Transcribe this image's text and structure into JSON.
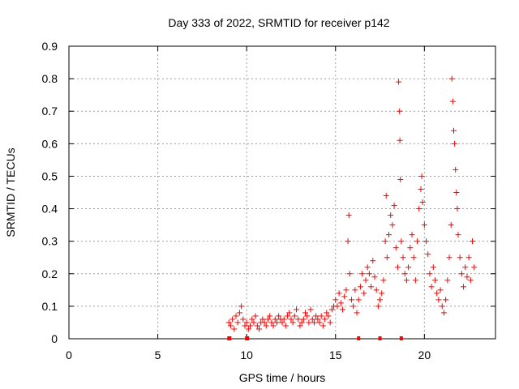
{
  "chart_data": {
    "type": "scatter",
    "title": "Day 333 of 2022, SRMTID for receiver p142",
    "xlabel": "GPS time / hours",
    "ylabel": "SRMTID / TECUs",
    "xlim": [
      0,
      24
    ],
    "ylim": [
      0,
      0.9
    ],
    "xticks": [
      0,
      5,
      10,
      15,
      20
    ],
    "yticks": [
      0,
      0.1,
      0.2,
      0.3,
      0.4,
      0.5,
      0.6,
      0.7,
      0.8,
      0.9
    ],
    "grid": true,
    "marker": "+",
    "color": "#ff0000",
    "series": [
      {
        "name": "SRMTID",
        "points": [
          [
            9.0,
            0.05
          ],
          [
            9.1,
            0.04
          ],
          [
            9.2,
            0.06
          ],
          [
            9.3,
            0.03
          ],
          [
            9.4,
            0.07
          ],
          [
            9.5,
            0.05
          ],
          [
            9.6,
            0.08
          ],
          [
            9.7,
            0.1
          ],
          [
            9.8,
            0.06
          ],
          [
            9.9,
            0.04
          ],
          [
            10.0,
            0.05
          ],
          [
            10.1,
            0.03
          ],
          [
            10.2,
            0.04
          ],
          [
            10.3,
            0.06
          ],
          [
            10.4,
            0.05
          ],
          [
            10.5,
            0.07
          ],
          [
            10.6,
            0.04
          ],
          [
            10.7,
            0.03
          ],
          [
            10.8,
            0.05
          ],
          [
            10.9,
            0.06
          ],
          [
            11.0,
            0.05
          ],
          [
            11.1,
            0.04
          ],
          [
            11.2,
            0.06
          ],
          [
            11.3,
            0.07
          ],
          [
            11.4,
            0.05
          ],
          [
            11.5,
            0.04
          ],
          [
            11.6,
            0.06
          ],
          [
            11.7,
            0.05
          ],
          [
            11.8,
            0.07
          ],
          [
            11.9,
            0.06
          ],
          [
            12.0,
            0.05
          ],
          [
            12.1,
            0.06
          ],
          [
            12.2,
            0.04
          ],
          [
            12.3,
            0.07
          ],
          [
            12.4,
            0.08
          ],
          [
            12.5,
            0.06
          ],
          [
            12.6,
            0.05
          ],
          [
            12.7,
            0.07
          ],
          [
            12.8,
            0.09
          ],
          [
            12.9,
            0.06
          ],
          [
            13.0,
            0.04
          ],
          [
            13.1,
            0.05
          ],
          [
            13.2,
            0.06
          ],
          [
            13.3,
            0.08
          ],
          [
            13.4,
            0.07
          ],
          [
            13.5,
            0.05
          ],
          [
            13.6,
            0.09
          ],
          [
            13.7,
            0.06
          ],
          [
            13.8,
            0.05
          ],
          [
            13.9,
            0.07
          ],
          [
            14.0,
            0.06
          ],
          [
            14.1,
            0.05
          ],
          [
            14.2,
            0.07
          ],
          [
            14.3,
            0.04
          ],
          [
            14.4,
            0.06
          ],
          [
            14.5,
            0.08
          ],
          [
            14.6,
            0.07
          ],
          [
            14.7,
            0.05
          ],
          [
            14.8,
            0.09
          ],
          [
            14.9,
            0.1
          ],
          [
            15.0,
            0.12
          ],
          [
            15.1,
            0.1
          ],
          [
            15.2,
            0.14
          ],
          [
            15.3,
            0.11
          ],
          [
            15.4,
            0.09
          ],
          [
            15.5,
            0.13
          ],
          [
            15.6,
            0.15
          ],
          [
            15.7,
            0.3
          ],
          [
            15.75,
            0.38
          ],
          [
            15.8,
            0.2
          ],
          [
            15.9,
            0.12
          ],
          [
            16.0,
            0.1
          ],
          [
            16.1,
            0.15
          ],
          [
            16.2,
            0.08
          ],
          [
            16.3,
            0.12
          ],
          [
            16.4,
            0.16
          ],
          [
            16.5,
            0.2
          ],
          [
            16.6,
            0.14
          ],
          [
            16.7,
            0.18
          ],
          [
            16.8,
            0.22
          ],
          [
            16.9,
            0.2
          ],
          [
            17.0,
            0.16
          ],
          [
            17.1,
            0.24
          ],
          [
            17.2,
            0.19
          ],
          [
            17.3,
            0.15
          ],
          [
            17.4,
            0.1
          ],
          [
            17.5,
            0.12
          ],
          [
            17.6,
            0.14
          ],
          [
            17.7,
            0.18
          ],
          [
            17.8,
            0.3
          ],
          [
            17.85,
            0.44
          ],
          [
            17.9,
            0.25
          ],
          [
            18.0,
            0.32
          ],
          [
            18.1,
            0.38
          ],
          [
            18.2,
            0.35
          ],
          [
            18.3,
            0.41
          ],
          [
            18.4,
            0.28
          ],
          [
            18.5,
            0.22
          ],
          [
            18.55,
            0.79
          ],
          [
            18.6,
            0.7
          ],
          [
            18.62,
            0.61
          ],
          [
            18.65,
            0.49
          ],
          [
            18.7,
            0.3
          ],
          [
            18.8,
            0.25
          ],
          [
            18.9,
            0.2
          ],
          [
            19.0,
            0.18
          ],
          [
            19.1,
            0.22
          ],
          [
            19.2,
            0.28
          ],
          [
            19.3,
            0.32
          ],
          [
            19.4,
            0.25
          ],
          [
            19.5,
            0.18
          ],
          [
            19.6,
            0.3
          ],
          [
            19.7,
            0.4
          ],
          [
            19.8,
            0.46
          ],
          [
            19.85,
            0.5
          ],
          [
            19.9,
            0.42
          ],
          [
            20.0,
            0.35
          ],
          [
            20.1,
            0.3
          ],
          [
            20.2,
            0.26
          ],
          [
            20.3,
            0.2
          ],
          [
            20.4,
            0.16
          ],
          [
            20.5,
            0.22
          ],
          [
            20.6,
            0.18
          ],
          [
            20.7,
            0.14
          ],
          [
            20.8,
            0.12
          ],
          [
            20.9,
            0.15
          ],
          [
            21.0,
            0.1
          ],
          [
            21.1,
            0.08
          ],
          [
            21.2,
            0.12
          ],
          [
            21.3,
            0.18
          ],
          [
            21.4,
            0.25
          ],
          [
            21.5,
            0.35
          ],
          [
            21.55,
            0.8
          ],
          [
            21.6,
            0.73
          ],
          [
            21.65,
            0.64
          ],
          [
            21.7,
            0.6
          ],
          [
            21.75,
            0.52
          ],
          [
            21.8,
            0.45
          ],
          [
            21.85,
            0.4
          ],
          [
            21.9,
            0.32
          ],
          [
            22.0,
            0.25
          ],
          [
            22.1,
            0.2
          ],
          [
            22.2,
            0.16
          ],
          [
            22.3,
            0.22
          ],
          [
            22.4,
            0.19
          ],
          [
            22.5,
            0.25
          ],
          [
            22.6,
            0.18
          ],
          [
            22.7,
            0.3
          ],
          [
            22.8,
            0.22
          ]
        ]
      }
    ],
    "baseline_markers": [
      9.0,
      9.05,
      10.0,
      10.05,
      16.3,
      17.5,
      18.7
    ]
  }
}
